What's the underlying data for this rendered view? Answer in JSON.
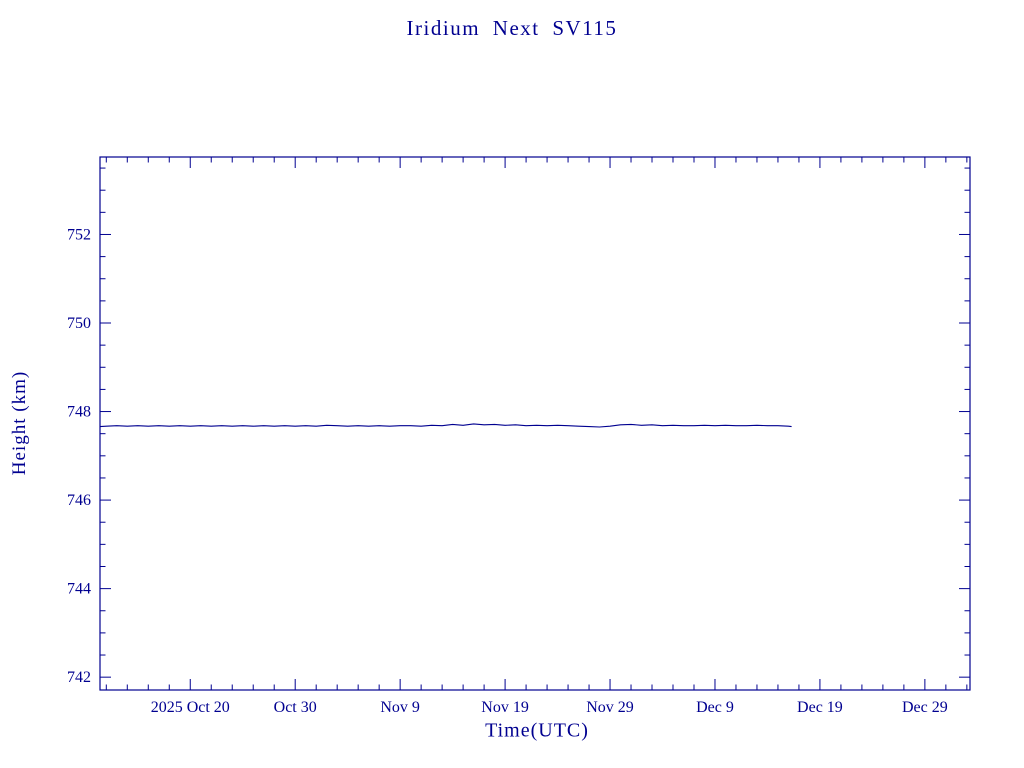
{
  "page": {
    "background": "#ffffff",
    "accent": "#000090"
  },
  "chart_data": {
    "type": "line",
    "title": "Iridium Next SV115",
    "xlabel": "Time(UTC)",
    "ylabel": "Height (km)",
    "grid": false,
    "legend": "none",
    "line_color": "#000090",
    "x_unit": "days relative to 2025 Oct 20",
    "xlim": [
      -8.6,
      74.3
    ],
    "ylim": [
      741.71,
      753.75
    ],
    "x_minor_step": 2,
    "y_minor_step": 0.5,
    "x_ticks": [
      {
        "pos": 0,
        "label": "2025 Oct 20"
      },
      {
        "pos": 10,
        "label": "Oct 30"
      },
      {
        "pos": 20,
        "label": "Nov 9"
      },
      {
        "pos": 30,
        "label": "Nov 19"
      },
      {
        "pos": 40,
        "label": "Nov 29"
      },
      {
        "pos": 50,
        "label": "Dec 9"
      },
      {
        "pos": 60,
        "label": "Dec 19"
      },
      {
        "pos": 70,
        "label": "Dec 29"
      }
    ],
    "y_ticks": [
      {
        "pos": 742,
        "label": "742"
      },
      {
        "pos": 744,
        "label": "744"
      },
      {
        "pos": 746,
        "label": "746"
      },
      {
        "pos": 748,
        "label": "748"
      },
      {
        "pos": 750,
        "label": "750"
      },
      {
        "pos": 752,
        "label": "752"
      }
    ],
    "series": [
      {
        "name": "height_km",
        "points": [
          [
            -8.6,
            747.66
          ],
          [
            -8,
            747.67
          ],
          [
            -7,
            747.68
          ],
          [
            -6,
            747.67
          ],
          [
            -5,
            747.68
          ],
          [
            -4,
            747.67
          ],
          [
            -3,
            747.68
          ],
          [
            -2,
            747.67
          ],
          [
            -1,
            747.68
          ],
          [
            0,
            747.67
          ],
          [
            1,
            747.68
          ],
          [
            2,
            747.67
          ],
          [
            3,
            747.68
          ],
          [
            4,
            747.67
          ],
          [
            5,
            747.68
          ],
          [
            6,
            747.67
          ],
          [
            7,
            747.68
          ],
          [
            8,
            747.67
          ],
          [
            9,
            747.68
          ],
          [
            10,
            747.67
          ],
          [
            11,
            747.68
          ],
          [
            12,
            747.67
          ],
          [
            13,
            747.69
          ],
          [
            14,
            747.68
          ],
          [
            15,
            747.67
          ],
          [
            16,
            747.68
          ],
          [
            17,
            747.67
          ],
          [
            18,
            747.68
          ],
          [
            19,
            747.67
          ],
          [
            20,
            747.68
          ],
          [
            21,
            747.68
          ],
          [
            22,
            747.67
          ],
          [
            23,
            747.69
          ],
          [
            24,
            747.68
          ],
          [
            25,
            747.71
          ],
          [
            26,
            747.69
          ],
          [
            27,
            747.72
          ],
          [
            28,
            747.7
          ],
          [
            29,
            747.71
          ],
          [
            30,
            747.69
          ],
          [
            31,
            747.7
          ],
          [
            32,
            747.68
          ],
          [
            33,
            747.69
          ],
          [
            34,
            747.68
          ],
          [
            35,
            747.69
          ],
          [
            36,
            747.68
          ],
          [
            37,
            747.67
          ],
          [
            38,
            747.66
          ],
          [
            39,
            747.65
          ],
          [
            40,
            747.67
          ],
          [
            41,
            747.7
          ],
          [
            42,
            747.71
          ],
          [
            43,
            747.69
          ],
          [
            44,
            747.7
          ],
          [
            45,
            747.68
          ],
          [
            46,
            747.69
          ],
          [
            47,
            747.68
          ],
          [
            48,
            747.68
          ],
          [
            49,
            747.69
          ],
          [
            50,
            747.68
          ],
          [
            51,
            747.69
          ],
          [
            52,
            747.68
          ],
          [
            53,
            747.68
          ],
          [
            54,
            747.69
          ],
          [
            55,
            747.68
          ],
          [
            56,
            747.68
          ],
          [
            57,
            747.67
          ],
          [
            57.3,
            747.66
          ]
        ]
      }
    ]
  }
}
